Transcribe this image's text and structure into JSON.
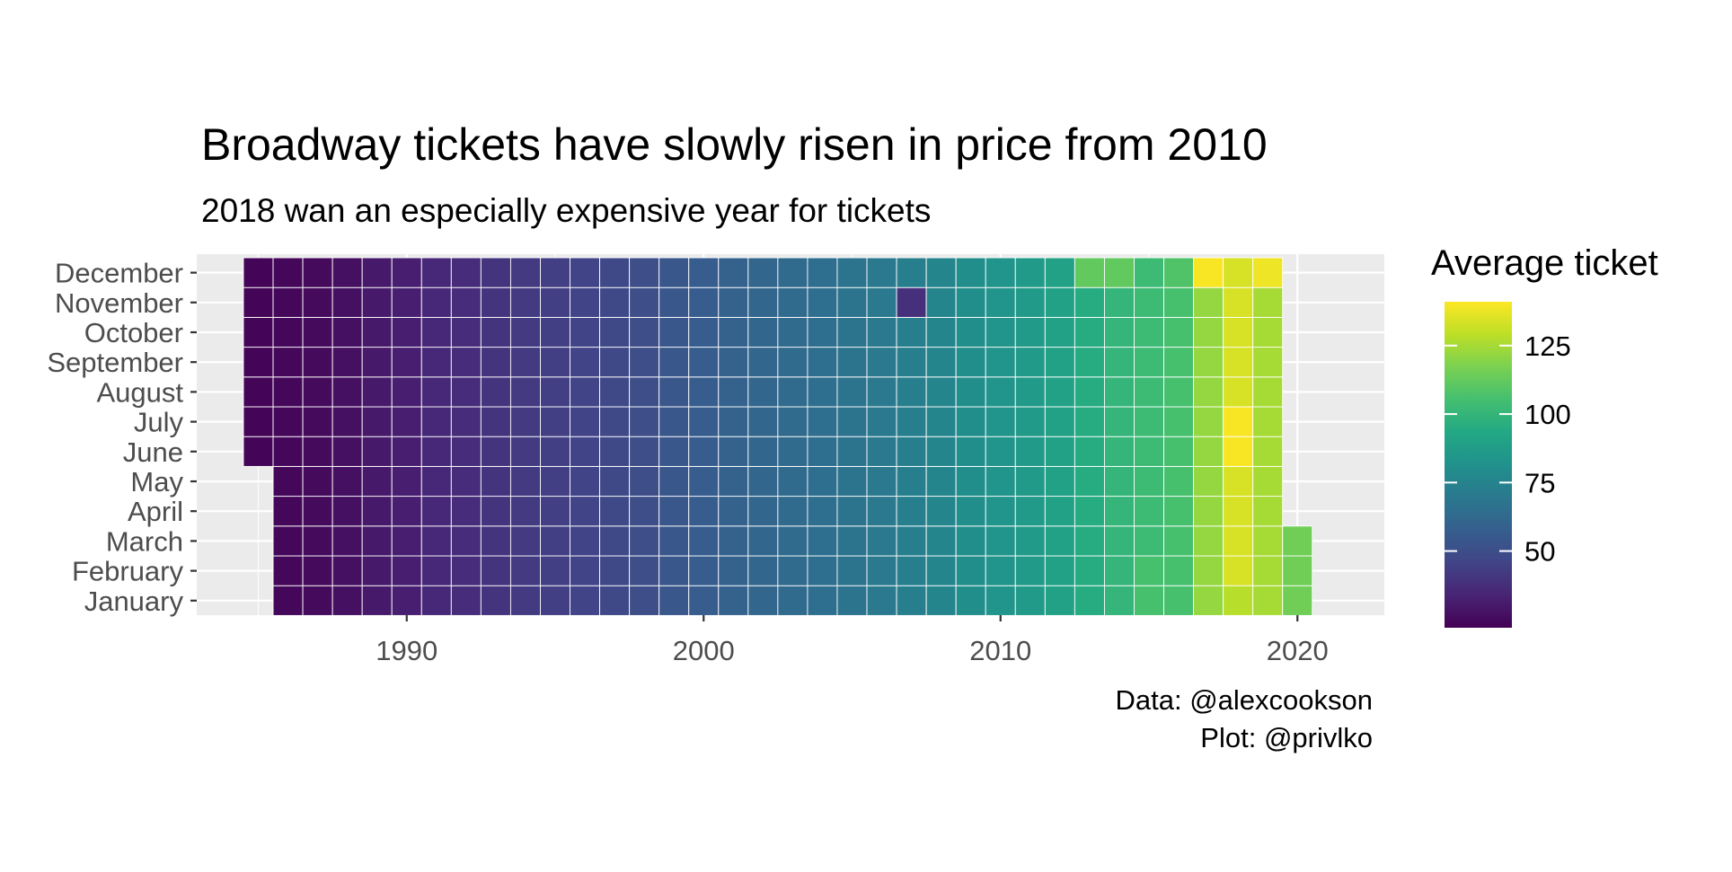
{
  "chart_data": {
    "type": "heatmap",
    "title": "Broadway tickets have slowly risen in price from 2010",
    "subtitle": "2018 wan an especially expensive year for tickets",
    "caption_lines": [
      "Data: @alexcookson",
      "Plot: @privlko"
    ],
    "y_categories": [
      "January",
      "February",
      "March",
      "April",
      "May",
      "June",
      "July",
      "August",
      "September",
      "October",
      "November",
      "December"
    ],
    "x_ticks": [
      1990,
      2000,
      2010,
      2020
    ],
    "xlim": [
      1983.2,
      2022.8
    ],
    "start": {
      "year": 1985,
      "month": 6
    },
    "end": {
      "year": 2020,
      "month": 3
    },
    "year_base": {
      "1985": 23,
      "1986": 24,
      "1987": 25,
      "1988": 27,
      "1989": 30,
      "1990": 32,
      "1991": 35,
      "1992": 37,
      "1993": 40,
      "1994": 42,
      "1995": 44,
      "1996": 46,
      "1997": 48,
      "1998": 50,
      "1999": 54,
      "2000": 57,
      "2001": 59,
      "2002": 61,
      "2003": 63,
      "2004": 65,
      "2005": 67,
      "2006": 70,
      "2007": 73,
      "2008": 76,
      "2009": 80,
      "2010": 83,
      "2011": 86,
      "2012": 90,
      "2013": 95,
      "2014": 100,
      "2015": 103,
      "2016": 106,
      "2017": 122,
      "2018": 134,
      "2019": 125,
      "2020": 115
    },
    "overrides": [
      {
        "year": 2007,
        "month": 11,
        "value": 38
      },
      {
        "year": 2017,
        "month": 12,
        "value": 140
      },
      {
        "year": 2019,
        "month": 12,
        "value": 138
      },
      {
        "year": 2018,
        "month": 7,
        "value": 140
      },
      {
        "year": 2018,
        "month": 6,
        "value": 140
      },
      {
        "year": 2018,
        "month": 1,
        "value": 128
      },
      {
        "year": 2016,
        "month": 12,
        "value": 108
      },
      {
        "year": 2013,
        "month": 12,
        "value": 112
      },
      {
        "year": 2014,
        "month": 12,
        "value": 112
      },
      {
        "year": 2015,
        "month": 1,
        "value": 106
      },
      {
        "year": 2015,
        "month": 2,
        "value": 106
      }
    ],
    "legend": {
      "title": "Average ticket",
      "position": "right",
      "ticks": [
        50,
        75,
        100,
        125
      ],
      "range": [
        22,
        141
      ],
      "colormap": "viridis"
    },
    "grid": true,
    "panel_background": "#ebebeb"
  }
}
